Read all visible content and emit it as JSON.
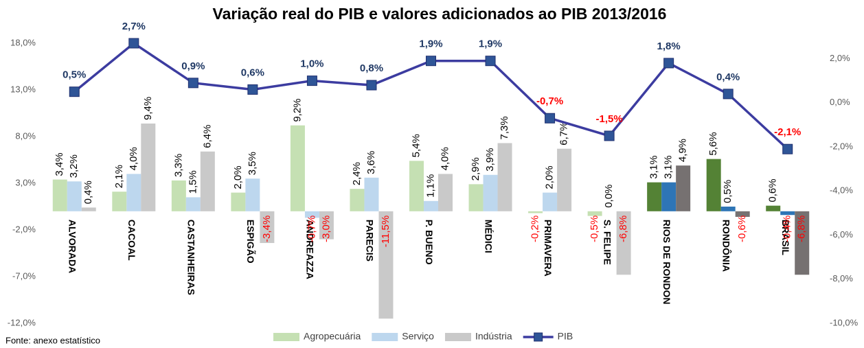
{
  "chart_data": {
    "type": "bar",
    "title": "Variação real do PIB e valores adicionados ao PIB 2013/2016",
    "source": "Fonte: anexo estatístico",
    "categories": [
      "ALVORADA",
      "CACOAL",
      "CASTANHEIRAS",
      "ESPIGÃO",
      "ANDREAZZA",
      "PARECIS",
      "P. BUENO",
      "MÉDICI",
      "PRIMAVERA",
      "S. FELIPE",
      "RIOS DE RONDON",
      "RONDÔNIA",
      "BRASIL"
    ],
    "ylim": [
      -12,
      18
    ],
    "yticks": [
      {
        "value": 18,
        "label": "18,0%"
      },
      {
        "value": 13,
        "label": "13,0%"
      },
      {
        "value": 8,
        "label": "8,0%"
      },
      {
        "value": 3,
        "label": "3,0%"
      },
      {
        "value": -2,
        "label": "-2,0%"
      },
      {
        "value": -7,
        "label": "-7,0%"
      },
      {
        "value": -12,
        "label": "-12,0%"
      }
    ],
    "y2lim": [
      -10,
      2.7
    ],
    "y2ticks": [
      {
        "value": 2,
        "label": "2,0%"
      },
      {
        "value": 0,
        "label": "0,0%"
      },
      {
        "value": -2,
        "label": "-2,0%"
      },
      {
        "value": -4,
        "label": "-4,0%"
      },
      {
        "value": -6,
        "label": "-6,0%"
      },
      {
        "value": -8,
        "label": "-8,0%"
      },
      {
        "value": -10,
        "label": "-10,0%"
      }
    ],
    "negative_label_color": "#ff0000",
    "series": [
      {
        "name": "Agropecuária",
        "type": "bar",
        "color": "#c5e0b3",
        "colors": [
          "#c5e0b3",
          "#c5e0b3",
          "#c5e0b3",
          "#c5e0b3",
          "#c5e0b3",
          "#c5e0b3",
          "#c5e0b3",
          "#c5e0b3",
          "#c5e0b3",
          "#c5e0b3",
          "#548235",
          "#548235",
          "#548235"
        ],
        "values": [
          3.4,
          2.1,
          3.3,
          2.0,
          9.2,
          2.4,
          5.4,
          2.9,
          -0.2,
          -0.5,
          3.1,
          5.6,
          0.6
        ],
        "value_labels": [
          "3,4%",
          "2,1%",
          "3,3%",
          "2,0%",
          "9,2%",
          "2,4%",
          "5,4%",
          "2,9%",
          "-0,2%",
          "-0,5%",
          "3,1%",
          "5,6%",
          "0,6%"
        ]
      },
      {
        "name": "Serviço",
        "type": "bar",
        "color": "#bdd7ee",
        "colors": [
          "#bdd7ee",
          "#bdd7ee",
          "#bdd7ee",
          "#bdd7ee",
          "#bdd7ee",
          "#bdd7ee",
          "#bdd7ee",
          "#bdd7ee",
          "#bdd7ee",
          "#bdd7ee",
          "#2e75b6",
          "#2e75b6",
          "#2e75b6"
        ],
        "values": [
          3.2,
          4.0,
          1.5,
          3.5,
          -0.7,
          3.6,
          1.1,
          3.9,
          2.0,
          0.0,
          3.1,
          0.5,
          -0.4
        ],
        "value_labels": [
          "3,2%",
          "4,0%",
          "1,5%",
          "3,5%",
          "-0,7%",
          "3,6%",
          "1,1%",
          "3,9%",
          "2,0%",
          "0,0%",
          "3,1%",
          "0,5%",
          "-0,4%"
        ]
      },
      {
        "name": "Indústria",
        "type": "bar",
        "color": "#c9c9c9",
        "colors": [
          "#c9c9c9",
          "#c9c9c9",
          "#c9c9c9",
          "#c9c9c9",
          "#c9c9c9",
          "#c9c9c9",
          "#c9c9c9",
          "#c9c9c9",
          "#c9c9c9",
          "#c9c9c9",
          "#767171",
          "#767171",
          "#767171"
        ],
        "values": [
          0.4,
          9.4,
          6.4,
          -3.4,
          -3.0,
          -11.5,
          4.0,
          7.3,
          6.7,
          -6.8,
          4.9,
          -0.6,
          -6.8
        ],
        "value_labels": [
          "0,4%",
          "9,4%",
          "6,4%",
          "-3,4%",
          "-3,0%",
          "-11,5%",
          "4,0%",
          "7,3%",
          "6,7%",
          "-6,8%",
          "4,9%",
          "-0,6%",
          "-6,8%"
        ]
      },
      {
        "name": "PIB",
        "type": "line",
        "axis": "y2",
        "color": "#3c3ca0",
        "label_color": "#1f3864",
        "values": [
          0.5,
          2.7,
          0.9,
          0.6,
          1.0,
          0.8,
          1.9,
          1.9,
          -0.7,
          -1.5,
          1.8,
          0.4,
          -2.1
        ],
        "value_labels": [
          "0,5%",
          "2,7%",
          "0,9%",
          "0,6%",
          "1,0%",
          "0,8%",
          "1,9%",
          "1,9%",
          "-0,7%",
          "-1,5%",
          "1,8%",
          "0,4%",
          "-2,1%"
        ]
      }
    ]
  }
}
